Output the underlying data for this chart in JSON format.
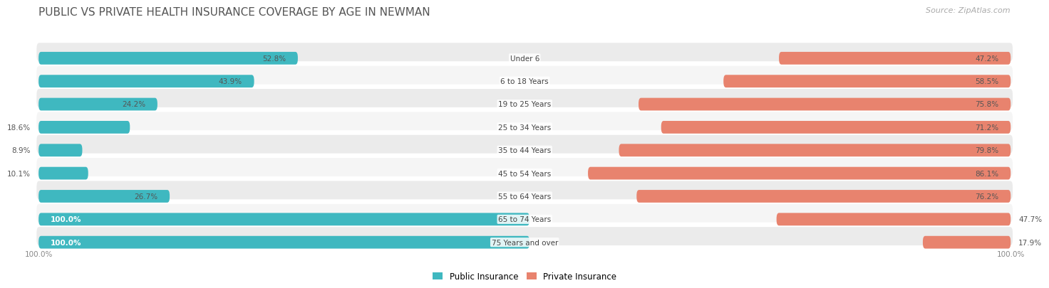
{
  "title": "PUBLIC VS PRIVATE HEALTH INSURANCE COVERAGE BY AGE IN NEWMAN",
  "source": "Source: ZipAtlas.com",
  "categories": [
    "Under 6",
    "6 to 18 Years",
    "19 to 25 Years",
    "25 to 34 Years",
    "35 to 44 Years",
    "45 to 54 Years",
    "55 to 64 Years",
    "65 to 74 Years",
    "75 Years and over"
  ],
  "public_values": [
    52.8,
    43.9,
    24.2,
    18.6,
    8.9,
    10.1,
    26.7,
    100.0,
    100.0
  ],
  "private_values": [
    47.2,
    58.5,
    75.8,
    71.2,
    79.8,
    86.1,
    76.2,
    47.7,
    17.9
  ],
  "public_color": "#3fb8c0",
  "private_color": "#e8836e",
  "row_bg_color_odd": "#ebebeb",
  "row_bg_color_even": "#f5f5f5",
  "title_fontsize": 11,
  "label_fontsize": 7.5,
  "value_fontsize": 7.5,
  "legend_fontsize": 8.5,
  "source_fontsize": 8
}
